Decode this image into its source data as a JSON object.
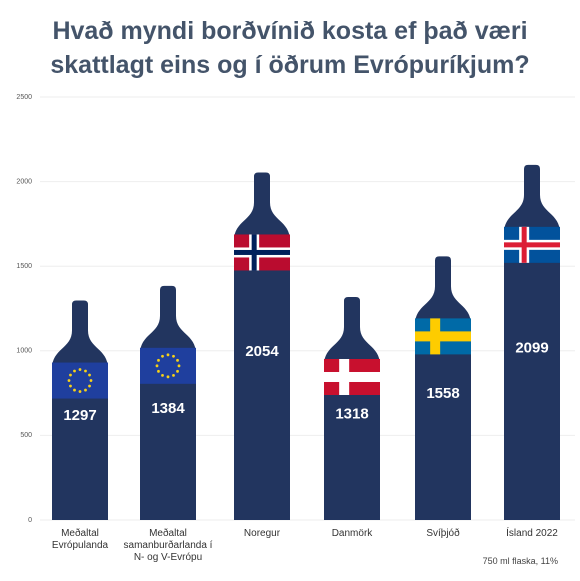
{
  "chart_data": {
    "type": "bottle-bar",
    "title": "Hvað myndi borðvínið kosta ef það væri\nskattlagt eins og í öðrum Evrópuríkjum?",
    "categories": [
      "Meðaltal\nEvrópulanda",
      "Meðaltal\nsamanburðarlanda í\nN- og V-Evrópu",
      "Noregur",
      "Danmörk",
      "Svíþjóð",
      "Ísland 2022"
    ],
    "values": [
      1297,
      1384,
      2054,
      1318,
      1558,
      2099
    ],
    "color": "#22355f",
    "ylim": [
      0,
      2500
    ],
    "yticks": [
      0,
      500,
      1000,
      1500,
      2000,
      2500
    ],
    "grid": true,
    "note": "750 ml flaska, 11%"
  }
}
